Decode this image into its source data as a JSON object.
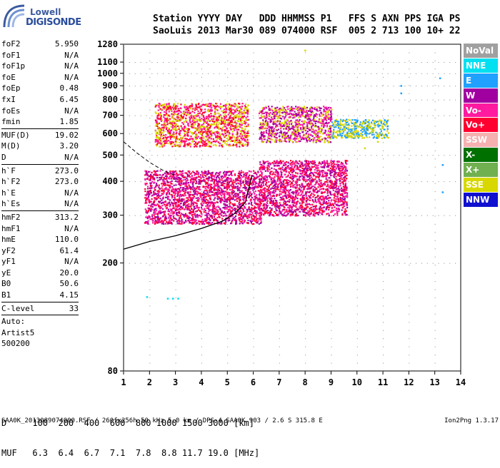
{
  "logo": {
    "line1": "Lowell",
    "line2": "DIGISONDE"
  },
  "header": {
    "row1": "Station YYYY DAY   DDD HHMMSS P1   FFS S AXN PPS IGA PS",
    "row2": "SaoLuis 2013 Mar30 089 074000 RSF  005 2 713 100 10+ 22"
  },
  "params": [
    {
      "label": "foF2",
      "value": "5.950"
    },
    {
      "label": "foF1",
      "value": "N/A"
    },
    {
      "label": "foF1p",
      "value": "N/A"
    },
    {
      "label": "foE",
      "value": "N/A"
    },
    {
      "label": "foEp",
      "value": "0.48"
    },
    {
      "label": "fxI",
      "value": "6.45"
    },
    {
      "label": "foEs",
      "value": "N/A"
    },
    {
      "label": "fmin",
      "value": "1.85"
    },
    {
      "sep": true
    },
    {
      "label": "MUF(D)",
      "value": "19.02"
    },
    {
      "label": "M(D)",
      "value": "3.20"
    },
    {
      "label": "D",
      "value": "N/A"
    },
    {
      "sep": true
    },
    {
      "label": "h`F",
      "value": "273.0"
    },
    {
      "label": "h`F2",
      "value": "273.0"
    },
    {
      "label": "h`E",
      "value": "N/A"
    },
    {
      "label": "h`Es",
      "value": "N/A"
    },
    {
      "sep": true
    },
    {
      "label": "hmF2",
      "value": "313.2"
    },
    {
      "label": "hmF1",
      "value": "N/A"
    },
    {
      "label": "hmE",
      "value": "110.0"
    },
    {
      "label": "yF2",
      "value": "61.4"
    },
    {
      "label": "yF1",
      "value": "N/A"
    },
    {
      "label": "yE",
      "value": "20.0"
    },
    {
      "label": "B0",
      "value": "50.6"
    },
    {
      "label": "B1",
      "value": "4.15"
    },
    {
      "sep": true
    },
    {
      "label": "C-level",
      "value": "33"
    },
    {
      "sep": true
    },
    {
      "note": "Auto:"
    },
    {
      "note": "Artist5"
    },
    {
      "note": "500200"
    }
  ],
  "legend": [
    {
      "label": "NoVal",
      "color": "#a0a0a0"
    },
    {
      "label": "NNE",
      "color": "#00e0f0"
    },
    {
      "label": "E",
      "color": "#20a0ff"
    },
    {
      "label": "W",
      "color": "#a000a0"
    },
    {
      "label": "Vo-",
      "color": "#ff1aa0"
    },
    {
      "label": "Vo+",
      "color": "#ff0030"
    },
    {
      "label": "SSW",
      "color": "#f5b0b0"
    },
    {
      "label": "X-",
      "color": "#007000"
    },
    {
      "label": "X+",
      "color": "#70b050"
    },
    {
      "label": "SSE",
      "color": "#d8d800"
    },
    {
      "label": "NNW",
      "color": "#1010d0"
    }
  ],
  "dtable": {
    "row1": "D     100  200  400  600  800 1000 1500 3000 [km]",
    "row2": "MUF   6.3  6.4  6.7  7.1  7.8  8.8 11.7 19.0 [MHz]"
  },
  "footer": {
    "left": "SAA0K_2013089074000.RSF / 260fx256h 50 kHz 5.0 km / DPS-4 SAA0K 903 / 2.6 S 315.8 E",
    "right": "Ion2Png 1.3.17"
  },
  "chart_data": {
    "type": "scatter",
    "title": "",
    "xlabel": "",
    "ylabel": "",
    "xlim": [
      1,
      14
    ],
    "ylim": [
      80,
      1280
    ],
    "xticks": [
      1,
      2,
      3,
      4,
      5,
      6,
      7,
      8,
      9,
      10,
      11,
      12,
      13,
      14
    ],
    "yticks": [
      80,
      200,
      300,
      400,
      500,
      600,
      700,
      800,
      900,
      1000,
      1100,
      1280
    ],
    "y_scale": "log",
    "trace_curve": {
      "x": [
        1.0,
        2.0,
        3.0,
        4.0,
        4.8,
        5.3,
        5.7,
        5.95
      ],
      "y": [
        225,
        240,
        252,
        268,
        285,
        305,
        335,
        420
      ]
    },
    "dashed_curve": {
      "x": [
        1.0,
        1.5,
        2.0,
        2.5,
        3.0
      ],
      "y": [
        560,
        510,
        470,
        440,
        420
      ]
    },
    "echo_bands": [
      {
        "x_from": 1.8,
        "x_to": 6.3,
        "y_from": 280,
        "y_to": 440,
        "colors": [
          "Vo+",
          "Vo-",
          "W"
        ]
      },
      {
        "x_from": 2.2,
        "x_to": 5.8,
        "y_from": 540,
        "y_to": 780,
        "colors": [
          "SSE",
          "Vo-",
          "Vo+"
        ]
      },
      {
        "x_from": 6.2,
        "x_to": 9.6,
        "y_from": 300,
        "y_to": 480,
        "colors": [
          "W",
          "Vo-",
          "Vo+"
        ]
      },
      {
        "x_from": 6.2,
        "x_to": 9.0,
        "y_from": 560,
        "y_to": 760,
        "colors": [
          "W",
          "Vo-",
          "SSE"
        ]
      },
      {
        "x_from": 9.0,
        "x_to": 11.2,
        "y_from": 580,
        "y_to": 680,
        "colors": [
          "SSE",
          "E"
        ]
      }
    ],
    "isolated_points": [
      {
        "x": 11.7,
        "y": 900,
        "color": "E"
      },
      {
        "x": 11.7,
        "y": 845,
        "color": "E"
      },
      {
        "x": 13.2,
        "y": 960,
        "color": "E"
      },
      {
        "x": 13.3,
        "y": 460,
        "color": "E"
      },
      {
        "x": 13.3,
        "y": 365,
        "color": "E"
      },
      {
        "x": 10.3,
        "y": 530,
        "color": "SSE"
      },
      {
        "x": 10.8,
        "y": 560,
        "color": "SSE"
      },
      {
        "x": 8.0,
        "y": 1215,
        "color": "SSE"
      },
      {
        "x": 2.7,
        "y": 148,
        "color": "NNE"
      },
      {
        "x": 2.9,
        "y": 148,
        "color": "NNE"
      },
      {
        "x": 3.1,
        "y": 148,
        "color": "NNE"
      },
      {
        "x": 1.9,
        "y": 150,
        "color": "NNE"
      }
    ]
  }
}
